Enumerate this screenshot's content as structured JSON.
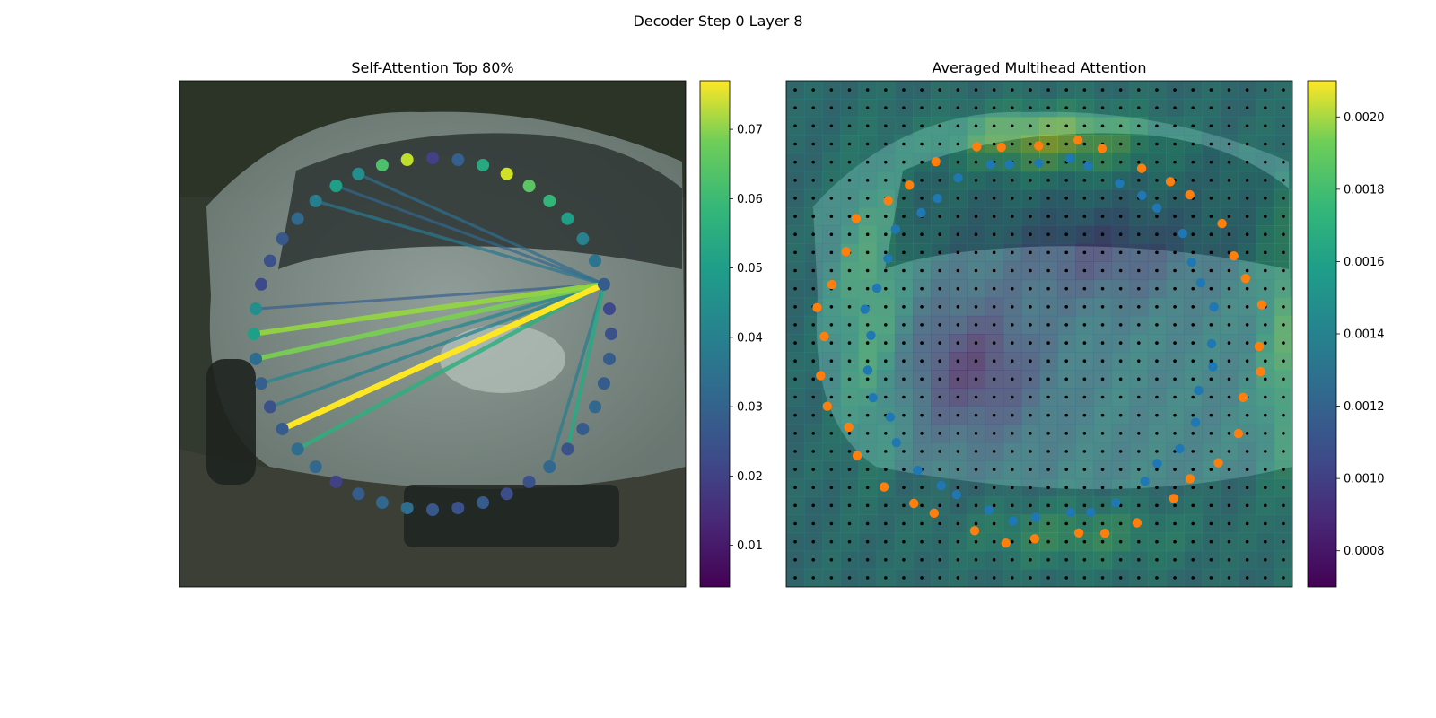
{
  "figure_title": "Decoder Step 0 Layer 8",
  "colors": {
    "self_attention_colormap": "viridis",
    "averaged_attention_colormap": "viridis",
    "grid_dots": "#000000",
    "contour_inner": "#1f77b4",
    "contour_outer": "#ff7f0e"
  },
  "chart_data": [
    {
      "type": "scatter",
      "title": "Self-Attention Top 80%",
      "description_background": "photo of silver car",
      "source_index": 9,
      "colorbar": {
        "range": [
          0.004,
          0.077
        ],
        "ticks": [
          "0.01",
          "0.02",
          "0.03",
          "0.04",
          "0.05",
          "0.06",
          "0.07"
        ],
        "tick_values": [
          0.01,
          0.02,
          0.03,
          0.04,
          0.05,
          0.06,
          0.07
        ]
      },
      "node_values": [
        0.018,
        0.026,
        0.048,
        0.072,
        0.058,
        0.052,
        0.045,
        0.036,
        0.032,
        0.025,
        0.02,
        0.022,
        0.025,
        0.025,
        0.028,
        0.025,
        0.022,
        0.028,
        0.022,
        0.021,
        0.025,
        0.022,
        0.024,
        0.03,
        0.028,
        0.025,
        0.018,
        0.028,
        0.03,
        0.025,
        0.022,
        0.026,
        0.03,
        0.045,
        0.04,
        0.02,
        0.022,
        0.024,
        0.028,
        0.035,
        0.045,
        0.04,
        0.056,
        0.07
      ],
      "edges": [
        {
          "to": 29,
          "value": 0.077
        },
        {
          "to": 33,
          "value": 0.065
        },
        {
          "to": 32,
          "value": 0.062
        },
        {
          "to": 28,
          "value": 0.05
        },
        {
          "to": 16,
          "value": 0.048
        },
        {
          "to": 31,
          "value": 0.038
        },
        {
          "to": 30,
          "value": 0.036
        },
        {
          "to": 17,
          "value": 0.035
        },
        {
          "to": 39,
          "value": 0.033
        },
        {
          "to": 41,
          "value": 0.03
        },
        {
          "to": 40,
          "value": 0.028
        },
        {
          "to": 34,
          "value": 0.026
        }
      ]
    },
    {
      "type": "heatmap",
      "title": "Averaged Multihead Attention",
      "description_background": "photo of silver car",
      "grid": {
        "cols": 28,
        "rows": 28
      },
      "colorbar": {
        "range": [
          0.0007,
          0.0021
        ],
        "ticks": [
          "0.0008",
          "0.0010",
          "0.0012",
          "0.0014",
          "0.0016",
          "0.0018",
          "0.0020"
        ],
        "tick_values": [
          0.0008,
          0.001,
          0.0012,
          0.0014,
          0.0016,
          0.0018,
          0.002
        ]
      }
    }
  ]
}
